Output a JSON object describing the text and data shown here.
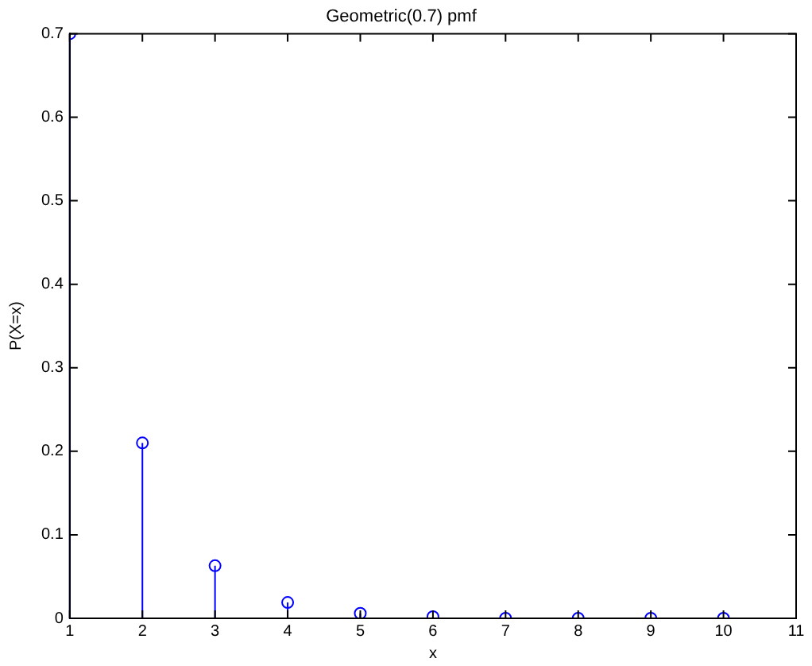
{
  "chart_data": {
    "type": "lollipop",
    "title": "Geometric(0.7) pmf",
    "xlabel": "x",
    "ylabel": "P(X=x)",
    "x": [
      1,
      2,
      3,
      4,
      5,
      6,
      7,
      8,
      9,
      10
    ],
    "series": [
      {
        "color": "#0000ff",
        "values": [
          0.7,
          0.21,
          0.063,
          0.019,
          0.006,
          0.002,
          0,
          0,
          0,
          0
        ]
      }
    ],
    "xlim": [
      1,
      11
    ],
    "xticks": [
      1,
      2,
      3,
      4,
      5,
      6,
      7,
      8,
      9,
      10,
      11
    ],
    "ylim": [
      0,
      0.7
    ],
    "yticks": [
      0,
      0.1,
      0.2,
      0.3,
      0.4,
      0.5,
      0.6,
      0.7
    ],
    "grid": false,
    "legend": false,
    "marker": "circle",
    "line_style": "solid"
  }
}
